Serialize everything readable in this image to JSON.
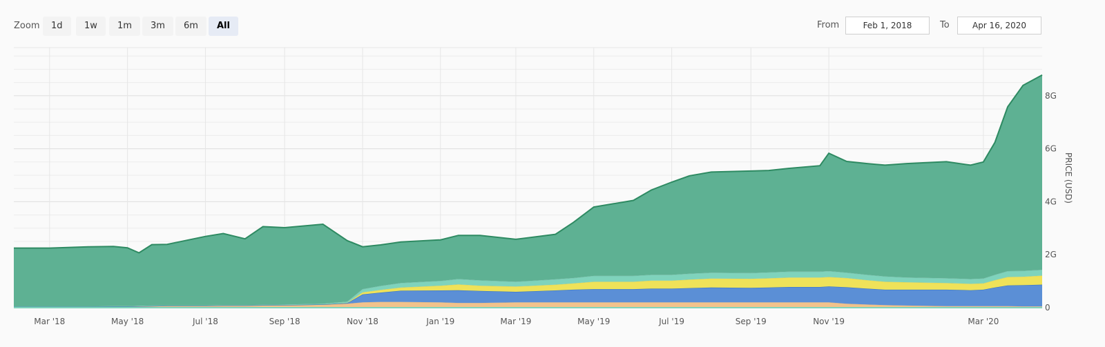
{
  "toolbar": {
    "zoom_label": "Zoom",
    "zoom_buttons": [
      {
        "label": "1d",
        "active": false
      },
      {
        "label": "1w",
        "active": false
      },
      {
        "label": "1m",
        "active": false
      },
      {
        "label": "3m",
        "active": false
      },
      {
        "label": "6m",
        "active": false
      },
      {
        "label": "All",
        "active": true
      }
    ],
    "from_label": "From",
    "from_value": "Feb 1, 2018",
    "to_label": "To",
    "to_value": "Apr 16, 2020"
  },
  "chart_data": {
    "type": "area",
    "stacked": true,
    "title": "",
    "xlabel": "",
    "ylabel": "PRICE (USD)",
    "x_range": [
      "2018-02-01",
      "2020-04-16"
    ],
    "ylim": [
      0,
      10
    ],
    "y_unit": "G",
    "grid": true,
    "x_ticks": [
      {
        "label": "Mar '18",
        "date": "2018-03-01"
      },
      {
        "label": "May '18",
        "date": "2018-05-01"
      },
      {
        "label": "Jul '18",
        "date": "2018-07-01"
      },
      {
        "label": "Sep '18",
        "date": "2018-09-01"
      },
      {
        "label": "Nov '18",
        "date": "2018-11-01"
      },
      {
        "label": "Jan '19",
        "date": "2019-01-01"
      },
      {
        "label": "Mar '19",
        "date": "2019-03-01"
      },
      {
        "label": "May '19",
        "date": "2019-05-01"
      },
      {
        "label": "Jul '19",
        "date": "2019-07-01"
      },
      {
        "label": "Sep '19",
        "date": "2019-09-01"
      },
      {
        "label": "Nov '19",
        "date": "2019-11-01"
      },
      {
        "label": "Mar '20",
        "date": "2020-03-01"
      }
    ],
    "y_ticks": [
      {
        "label": "0",
        "value": 0
      },
      {
        "label": "2G",
        "value": 2
      },
      {
        "label": "4G",
        "value": 4
      },
      {
        "label": "6G",
        "value": 6
      },
      {
        "label": "8G",
        "value": 8
      }
    ],
    "x": [
      "2018-02-01",
      "2018-03-01",
      "2018-04-01",
      "2018-04-20",
      "2018-05-01",
      "2018-05-10",
      "2018-05-20",
      "2018-06-01",
      "2018-07-01",
      "2018-07-15",
      "2018-08-01",
      "2018-08-15",
      "2018-09-01",
      "2018-10-01",
      "2018-10-20",
      "2018-11-01",
      "2018-11-15",
      "2018-12-01",
      "2019-01-01",
      "2019-01-15",
      "2019-02-01",
      "2019-03-01",
      "2019-04-01",
      "2019-04-15",
      "2019-05-01",
      "2019-06-01",
      "2019-06-15",
      "2019-07-01",
      "2019-07-15",
      "2019-08-01",
      "2019-09-01",
      "2019-09-15",
      "2019-10-01",
      "2019-10-25",
      "2019-11-01",
      "2019-11-15",
      "2019-12-01",
      "2019-12-15",
      "2020-01-01",
      "2020-02-01",
      "2020-02-20",
      "2020-03-01",
      "2020-03-10",
      "2020-03-20",
      "2020-04-01",
      "2020-04-16"
    ],
    "series": [
      {
        "color": "#f2c38b",
        "values": [
          0.03,
          0.03,
          0.03,
          0.04,
          0.04,
          0.05,
          0.06,
          0.07,
          0.07,
          0.08,
          0.08,
          0.09,
          0.1,
          0.12,
          0.15,
          0.2,
          0.22,
          0.22,
          0.2,
          0.18,
          0.18,
          0.2,
          0.2,
          0.2,
          0.2,
          0.2,
          0.2,
          0.2,
          0.2,
          0.2,
          0.2,
          0.2,
          0.2,
          0.2,
          0.2,
          0.15,
          0.12,
          0.1,
          0.08,
          0.06,
          0.06,
          0.06,
          0.06,
          0.06,
          0.05,
          0.05
        ]
      },
      {
        "color": "#5b8fd6",
        "values": [
          0,
          0,
          0,
          0,
          0,
          0,
          0,
          0,
          0,
          0,
          0,
          0,
          0,
          0,
          0.02,
          0.3,
          0.35,
          0.42,
          0.45,
          0.48,
          0.45,
          0.4,
          0.45,
          0.48,
          0.5,
          0.5,
          0.52,
          0.52,
          0.54,
          0.56,
          0.55,
          0.56,
          0.58,
          0.58,
          0.6,
          0.62,
          0.6,
          0.58,
          0.6,
          0.62,
          0.6,
          0.62,
          0.7,
          0.78,
          0.8,
          0.82
        ]
      },
      {
        "color": "#efe259",
        "values": [
          0,
          0,
          0,
          0,
          0,
          0,
          0,
          0,
          0,
          0,
          0,
          0,
          0,
          0,
          0.01,
          0.08,
          0.1,
          0.12,
          0.18,
          0.22,
          0.2,
          0.2,
          0.22,
          0.24,
          0.28,
          0.28,
          0.3,
          0.3,
          0.32,
          0.34,
          0.34,
          0.35,
          0.36,
          0.36,
          0.36,
          0.35,
          0.32,
          0.3,
          0.28,
          0.25,
          0.24,
          0.24,
          0.28,
          0.32,
          0.32,
          0.34
        ]
      },
      {
        "color": "#7fd3bc",
        "values": [
          0.02,
          0.02,
          0.02,
          0.02,
          0.02,
          0.02,
          0.02,
          0.02,
          0.02,
          0.02,
          0.02,
          0.02,
          0.02,
          0.03,
          0.05,
          0.12,
          0.15,
          0.17,
          0.18,
          0.2,
          0.2,
          0.18,
          0.2,
          0.2,
          0.22,
          0.22,
          0.22,
          0.22,
          0.22,
          0.22,
          0.22,
          0.22,
          0.22,
          0.22,
          0.22,
          0.2,
          0.2,
          0.2,
          0.18,
          0.18,
          0.18,
          0.18,
          0.2,
          0.22,
          0.22,
          0.22
        ]
      },
      {
        "color": "#5eb193",
        "values": [
          2.2,
          2.2,
          2.25,
          2.25,
          2.2,
          2.0,
          2.3,
          2.3,
          2.6,
          2.7,
          2.5,
          2.95,
          2.9,
          3.0,
          2.3,
          1.6,
          1.55,
          1.55,
          1.55,
          1.65,
          1.7,
          1.6,
          1.7,
          2.1,
          2.6,
          2.85,
          3.2,
          3.5,
          3.7,
          3.8,
          3.85,
          3.85,
          3.9,
          4.0,
          4.45,
          4.2,
          4.2,
          4.2,
          4.3,
          4.4,
          4.3,
          4.4,
          5.0,
          6.2,
          7.0,
          7.35
        ]
      }
    ]
  }
}
